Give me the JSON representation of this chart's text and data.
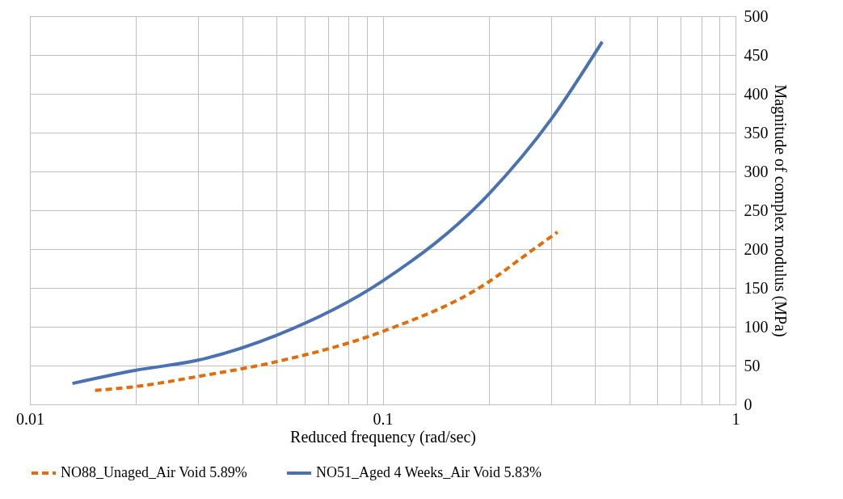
{
  "chart_data": {
    "type": "line",
    "xlabel": "Reduced frequency (rad/sec)",
    "ylabel": "Magnitude of complex modulus (MPa)",
    "log": "x",
    "grid": true,
    "legend": "bottom",
    "xlim": [
      0.01,
      1
    ],
    "xticks": [
      {
        "value": 0.01,
        "label": "0.01"
      },
      {
        "value": 0.02,
        "label": null
      },
      {
        "value": 0.03,
        "label": null
      },
      {
        "value": 0.04,
        "label": null
      },
      {
        "value": 0.05,
        "label": null
      },
      {
        "value": 0.06,
        "label": null
      },
      {
        "value": 0.07,
        "label": null
      },
      {
        "value": 0.08,
        "label": null
      },
      {
        "value": 0.09,
        "label": null
      },
      {
        "value": 0.1,
        "label": "0.1"
      },
      {
        "value": 0.2,
        "label": null
      },
      {
        "value": 0.3,
        "label": null
      },
      {
        "value": 0.4,
        "label": null
      },
      {
        "value": 0.5,
        "label": null
      },
      {
        "value": 0.6,
        "label": null
      },
      {
        "value": 0.7,
        "label": null
      },
      {
        "value": 0.8,
        "label": null
      },
      {
        "value": 0.9,
        "label": null
      },
      {
        "value": 1,
        "label": "1"
      }
    ],
    "ylim": [
      0,
      500
    ],
    "yticks": [
      0,
      50,
      100,
      150,
      200,
      250,
      300,
      350,
      400,
      450,
      500
    ],
    "series": [
      {
        "name": "NO88_Unaged_Air Void 5.89%",
        "color": "#e36c0a",
        "line_style": "dashed",
        "x": [
          0.0153,
          0.02,
          0.03,
          0.05,
          0.1,
          0.2,
          0.25,
          0.313
        ],
        "values": [
          18,
          23,
          36,
          55,
          94,
          158,
          190,
          222
        ]
      },
      {
        "name": "NO51_Aged 4 Weeks_Air Void 5.83%",
        "color": "#4a72b0",
        "line_style": "solid",
        "x": [
          0.0132,
          0.02,
          0.03,
          0.05,
          0.1,
          0.2,
          0.3,
          0.419
        ],
        "values": [
          27,
          44,
          57,
          89,
          159,
          271,
          367,
          467
        ]
      }
    ]
  }
}
